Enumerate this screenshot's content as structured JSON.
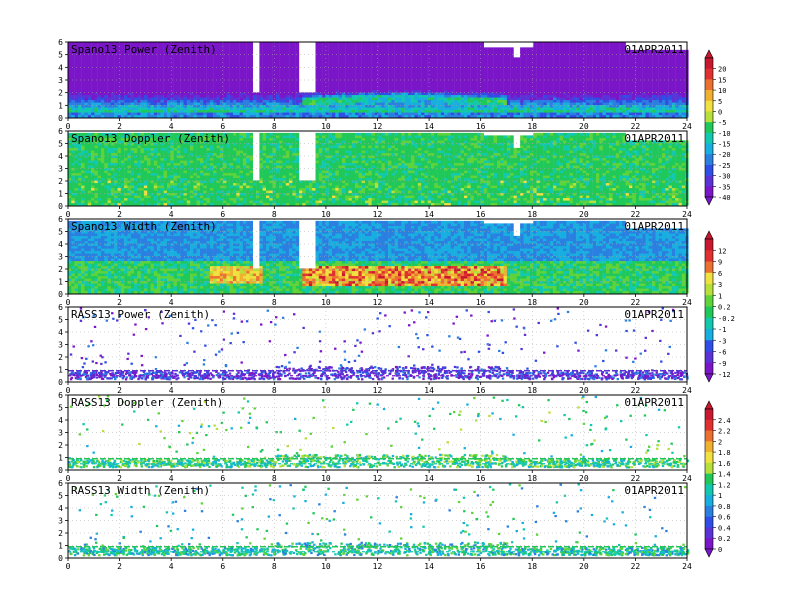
{
  "chart_data": [
    {
      "type": "heatmap",
      "title": "Spano13 Power (Zenith)",
      "date": "01APR2011",
      "x_ticks": [
        "0",
        "2",
        "4",
        "6",
        "8",
        "10",
        "12",
        "14",
        "16",
        "18",
        "20",
        "22",
        "24"
      ],
      "y_ticks": [
        "0",
        "1",
        "2",
        "3",
        "4",
        "5",
        "6"
      ],
      "xlim": [
        0,
        24
      ],
      "ylim": [
        0,
        6
      ],
      "field": "power"
    },
    {
      "type": "heatmap",
      "title": "Spano13 Doppler (Zenith)",
      "date": "01APR2011",
      "x_ticks": [
        "0",
        "2",
        "4",
        "6",
        "8",
        "10",
        "12",
        "14",
        "16",
        "18",
        "20",
        "22",
        "24"
      ],
      "y_ticks": [
        "0",
        "1",
        "2",
        "3",
        "4",
        "5",
        "6"
      ],
      "xlim": [
        0,
        24
      ],
      "ylim": [
        0,
        6
      ],
      "field": "doppler"
    },
    {
      "type": "heatmap",
      "title": "Spano13 Width (Zenith)",
      "date": "01APR2011",
      "x_ticks": [
        "0",
        "2",
        "4",
        "6",
        "8",
        "10",
        "12",
        "14",
        "16",
        "18",
        "20",
        "22",
        "24"
      ],
      "y_ticks": [
        "0",
        "1",
        "2",
        "3",
        "4",
        "5",
        "6"
      ],
      "xlim": [
        0,
        24
      ],
      "ylim": [
        0,
        6
      ],
      "field": "width"
    },
    {
      "type": "heatmap",
      "title": "RASS13 Power (Zenith)",
      "date": "01APR2011",
      "x_ticks": [
        "0",
        "2",
        "4",
        "6",
        "8",
        "10",
        "12",
        "14",
        "16",
        "18",
        "20",
        "22",
        "24"
      ],
      "y_ticks": [
        "0",
        "1",
        "2",
        "3",
        "4",
        "5",
        "6"
      ],
      "xlim": [
        0,
        24
      ],
      "ylim": [
        0,
        6
      ],
      "field": "rass_power"
    },
    {
      "type": "heatmap",
      "title": "RASS13 Doppler (Zenith)",
      "date": "01APR2011",
      "x_ticks": [
        "0",
        "2",
        "4",
        "6",
        "8",
        "10",
        "12",
        "14",
        "16",
        "18",
        "20",
        "22",
        "24"
      ],
      "y_ticks": [
        "0",
        "1",
        "2",
        "3",
        "4",
        "5",
        "6"
      ],
      "xlim": [
        0,
        24
      ],
      "ylim": [
        0,
        6
      ],
      "field": "rass_doppler"
    },
    {
      "type": "heatmap",
      "title": "RASS13 Width (Zenith)",
      "date": "01APR2011",
      "x_ticks": [
        "0",
        "2",
        "4",
        "6",
        "8",
        "10",
        "12",
        "14",
        "16",
        "18",
        "20",
        "22",
        "24"
      ],
      "y_ticks": [
        "0",
        "1",
        "2",
        "3",
        "4",
        "5",
        "6"
      ],
      "xlim": [
        0,
        24
      ],
      "ylim": [
        0,
        6
      ],
      "field": "rass_width"
    }
  ],
  "colorbars": [
    {
      "labels": [
        "20",
        "15",
        "10",
        "5",
        "0",
        "-5",
        "-10",
        "-15",
        "-20",
        "-25",
        "-30",
        "-35",
        "-40"
      ]
    },
    {
      "labels": [
        "12",
        "9",
        "6",
        "3",
        "1",
        "0.2",
        "-0.2",
        "-1",
        "-3",
        "-6",
        "-9",
        "-12"
      ]
    },
    {
      "labels": [
        "2.4",
        "2.2",
        "2",
        "1.8",
        "1.6",
        "1.4",
        "1.2",
        "1",
        "0.8",
        "0.6",
        "0.4",
        "0.2",
        "0"
      ]
    }
  ],
  "colors": {
    "scale": [
      "#7b16c8",
      "#5a32d8",
      "#2f4ee6",
      "#2a7fe0",
      "#18aee0",
      "#12c9b0",
      "#20c85a",
      "#5fd33a",
      "#b8e03a",
      "#f0e040",
      "#f0b030",
      "#ec7030",
      "#e03030",
      "#c81830"
    ]
  }
}
